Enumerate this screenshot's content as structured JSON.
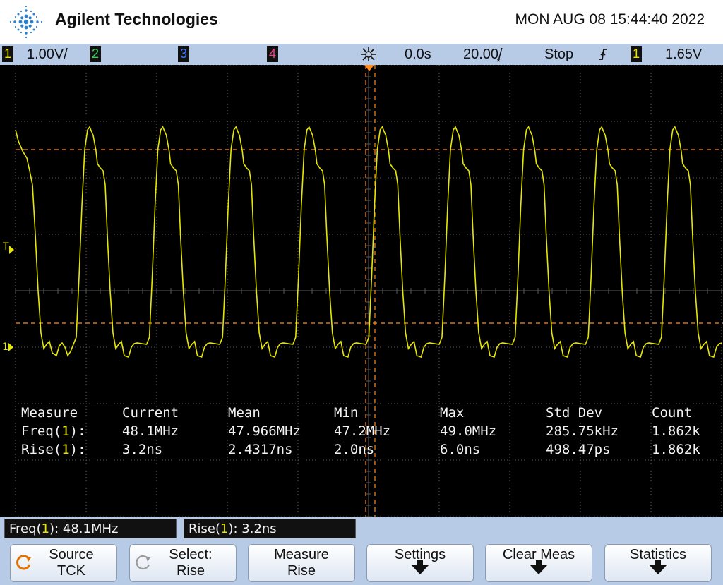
{
  "header": {
    "brand": "Agilent Technologies",
    "datetime": "MON AUG 08 15:44:40 2022",
    "logo_icon": "agilent-spark-icon"
  },
  "status_bar": {
    "ch1": {
      "num": "1",
      "scale": "1.00V/",
      "color": "#e6e600"
    },
    "ch2": {
      "num": "2",
      "color": "#39d353"
    },
    "ch3": {
      "num": "3",
      "color": "#3a7bff"
    },
    "ch4": {
      "num": "4",
      "color": "#ff3c8c"
    },
    "acq_icon": "acquisition-icon",
    "time_delay": "0.0s",
    "time_scale": "20.00͓/",
    "run_state": "Stop",
    "trigger_edge_icon": "rising-edge-icon",
    "trigger_source": "1",
    "trigger_level": "1.65V"
  },
  "markers": {
    "trigger_level_marker": "T",
    "ch1_ground_marker": "1"
  },
  "measurements": {
    "headers": [
      "Measure",
      "Current",
      "Mean",
      "Min",
      "Max",
      "Std Dev",
      "Count"
    ],
    "rows": [
      {
        "name": "Freq",
        "source": "1",
        "current": "48.1MHz",
        "mean": "47.966MHz",
        "min": "47.2MHz",
        "max": "49.0MHz",
        "stddev": "285.75kHz",
        "count": "1.862k"
      },
      {
        "name": "Rise",
        "source": "1",
        "current": "3.2ns",
        "mean": "2.4317ns",
        "min": "2.0ns",
        "max": "6.0ns",
        "stddev": "498.47ps",
        "count": "1.862k"
      }
    ]
  },
  "readouts": [
    {
      "name": "Freq",
      "source": "1",
      "value": ": 48.1MHz"
    },
    {
      "name": "Rise",
      "source": "1",
      "value": ": 3.2ns"
    }
  ],
  "softkeys": [
    {
      "line1": "Source",
      "line2": "TCK",
      "icon": "rotary-knob-icon"
    },
    {
      "line1": "Select:",
      "line2": "Rise",
      "icon": "rotary-knob-icon"
    },
    {
      "line1": "Measure",
      "line2": "Rise"
    },
    {
      "line1": "Settings",
      "line2": ""
    },
    {
      "line1": "Clear Meas",
      "line2": ""
    },
    {
      "line1": "Statistics",
      "line2": ""
    }
  ],
  "colors": {
    "trace": "#e6e600",
    "cursor": "#ff8c1a",
    "grid": "#5a5a5a",
    "panel": "#b7cbe6"
  }
}
